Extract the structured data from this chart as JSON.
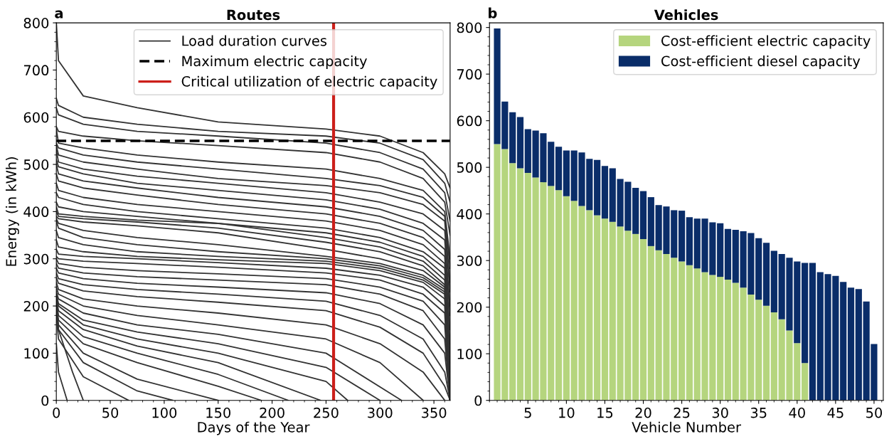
{
  "chart_data": [
    {
      "type": "line",
      "title": "Routes",
      "xlabel": "Days of the Year",
      "ylabel": "Energy (in kWh)",
      "annotations": [
        "a"
      ],
      "xlim": [
        0,
        365
      ],
      "xticks": [
        0,
        50,
        100,
        150,
        200,
        250,
        300,
        350
      ],
      "ylim": [
        0,
        800
      ],
      "yticks": [
        0,
        100,
        200,
        300,
        400,
        500,
        600,
        700,
        800
      ],
      "grid": false,
      "legend": "top right",
      "marker": "none",
      "line_style": "solid",
      "x": [
        0,
        2,
        25,
        75,
        150,
        250,
        300,
        340,
        360,
        365
      ],
      "series": [
        {
          "name": "Load duration curves",
          "color": "#333333",
          "values": [
            800,
            720,
            645,
            620,
            590,
            575,
            560,
            525,
            480,
            450
          ]
        },
        {
          "color": "#333333",
          "values": [
            640,
            625,
            600,
            585,
            570,
            560,
            545,
            510,
            460,
            420
          ]
        },
        {
          "color": "#333333",
          "values": [
            620,
            605,
            585,
            570,
            560,
            545,
            525,
            490,
            440,
            380
          ]
        },
        {
          "color": "#333333",
          "values": [
            580,
            570,
            560,
            550,
            540,
            525,
            505,
            470,
            420,
            350
          ]
        },
        {
          "color": "#333333",
          "values": [
            575,
            545,
            535,
            520,
            505,
            490,
            470,
            445,
            400,
            300
          ]
        },
        {
          "color": "#333333",
          "values": [
            545,
            535,
            520,
            505,
            490,
            470,
            455,
            430,
            390,
            280
          ]
        },
        {
          "color": "#333333",
          "values": [
            540,
            520,
            505,
            490,
            470,
            455,
            440,
            415,
            380,
            250
          ]
        },
        {
          "color": "#333333",
          "values": [
            530,
            505,
            490,
            475,
            460,
            440,
            420,
            395,
            360,
            230
          ]
        },
        {
          "color": "#333333",
          "values": [
            510,
            495,
            480,
            460,
            445,
            425,
            405,
            375,
            340,
            200
          ]
        },
        {
          "color": "#333333",
          "values": [
            500,
            480,
            465,
            450,
            430,
            410,
            390,
            360,
            320,
            180
          ]
        },
        {
          "color": "#333333",
          "values": [
            480,
            465,
            450,
            435,
            415,
            395,
            375,
            345,
            305,
            150
          ]
        },
        {
          "color": "#333333",
          "values": [
            460,
            445,
            430,
            415,
            400,
            380,
            360,
            330,
            290,
            120
          ]
        },
        {
          "color": "#333333",
          "values": [
            440,
            430,
            415,
            400,
            385,
            365,
            345,
            315,
            280,
            100
          ]
        },
        {
          "color": "#333333",
          "values": [
            420,
            410,
            400,
            390,
            375,
            355,
            335,
            305,
            265,
            80
          ]
        },
        {
          "color": "#333333",
          "values": [
            410,
            395,
            390,
            382,
            375,
            345,
            325,
            295,
            255,
            60
          ]
        },
        {
          "color": "#333333",
          "values": [
            400,
            390,
            385,
            378,
            365,
            335,
            315,
            285,
            245,
            40
          ]
        },
        {
          "color": "#333333",
          "values": [
            390,
            385,
            378,
            370,
            355,
            320,
            300,
            275,
            240,
            20
          ]
        },
        {
          "color": "#333333",
          "values": [
            385,
            375,
            360,
            345,
            330,
            305,
            290,
            265,
            235,
            0
          ]
        },
        {
          "color": "#333333",
          "values": [
            380,
            365,
            345,
            330,
            315,
            300,
            285,
            260,
            230,
            0
          ]
        },
        {
          "color": "#333333",
          "values": [
            360,
            345,
            330,
            315,
            305,
            295,
            280,
            255,
            225,
            0
          ]
        },
        {
          "color": "#333333",
          "values": [
            340,
            325,
            315,
            305,
            298,
            290,
            275,
            250,
            215,
            0
          ]
        },
        {
          "color": "#333333",
          "values": [
            320,
            310,
            305,
            300,
            292,
            280,
            265,
            240,
            200,
            0
          ]
        },
        {
          "color": "#333333",
          "values": [
            305,
            300,
            295,
            290,
            282,
            270,
            255,
            225,
            185,
            0
          ]
        },
        {
          "color": "#333333",
          "values": [
            300,
            290,
            282,
            275,
            268,
            258,
            240,
            210,
            160,
            0
          ]
        },
        {
          "color": "#333333",
          "values": [
            290,
            280,
            270,
            262,
            255,
            245,
            225,
            190,
            130,
            0
          ]
        },
        {
          "color": "#333333",
          "values": [
            280,
            270,
            258,
            248,
            240,
            228,
            205,
            160,
            100,
            0
          ]
        },
        {
          "color": "#333333",
          "values": [
            270,
            258,
            245,
            235,
            225,
            210,
            180,
            130,
            60,
            0
          ]
        },
        {
          "color": "#333333",
          "values": [
            260,
            248,
            232,
            220,
            208,
            190,
            155,
            100,
            30,
            0
          ]
        },
        {
          "color": "#333333",
          "x": [
            0,
            2,
            25,
            75,
            150,
            250,
            300,
            340,
            360
          ],
          "values": [
            250,
            235,
            215,
            200,
            185,
            160,
            120,
            60,
            0
          ]
        },
        {
          "color": "#333333",
          "x": [
            0,
            2,
            25,
            75,
            150,
            250,
            300,
            340
          ],
          "values": [
            240,
            225,
            200,
            180,
            160,
            130,
            80,
            0
          ]
        },
        {
          "color": "#333333",
          "x": [
            0,
            2,
            25,
            75,
            150,
            250,
            320
          ],
          "values": [
            230,
            215,
            185,
            160,
            140,
            100,
            0
          ]
        },
        {
          "color": "#333333",
          "x": [
            0,
            2,
            25,
            75,
            150,
            250,
            300
          ],
          "values": [
            225,
            205,
            170,
            145,
            120,
            70,
            0
          ]
        },
        {
          "color": "#333333",
          "x": [
            0,
            2,
            25,
            75,
            150,
            250,
            270
          ],
          "values": [
            220,
            200,
            160,
            130,
            100,
            40,
            0
          ]
        },
        {
          "color": "#333333",
          "x": [
            0,
            2,
            25,
            75,
            150,
            245
          ],
          "values": [
            215,
            190,
            150,
            115,
            80,
            0
          ]
        },
        {
          "color": "#333333",
          "x": [
            0,
            2,
            25,
            75,
            150,
            215
          ],
          "values": [
            210,
            180,
            135,
            100,
            55,
            0
          ]
        },
        {
          "color": "#333333",
          "x": [
            0,
            2,
            25,
            75,
            150,
            190
          ],
          "values": [
            205,
            170,
            120,
            80,
            30,
            0
          ]
        },
        {
          "color": "#333333",
          "x": [
            0,
            2,
            25,
            75,
            150
          ],
          "values": [
            200,
            160,
            100,
            45,
            0
          ]
        },
        {
          "color": "#333333",
          "x": [
            0,
            2,
            25,
            75,
            108
          ],
          "values": [
            190,
            150,
            80,
            20,
            0
          ]
        },
        {
          "color": "#333333",
          "x": [
            0,
            2,
            25,
            67
          ],
          "values": [
            180,
            130,
            50,
            0
          ]
        },
        {
          "color": "#333333",
          "x": [
            0,
            2,
            15,
            25
          ],
          "values": [
            220,
            150,
            60,
            0
          ]
        },
        {
          "color": "#333333",
          "x": [
            0,
            2,
            10
          ],
          "values": [
            120,
            60,
            0
          ]
        }
      ],
      "ref_lines": [
        {
          "axis": "y",
          "value": 550,
          "label": "Maximum electric capacity",
          "color": "#000000",
          "line_style": "dashed"
        },
        {
          "axis": "x",
          "value": 257,
          "label": "Critical utilization of electric capacity",
          "color": "#cc1f1a",
          "line_style": "solid"
        }
      ]
    },
    {
      "type": "bar",
      "stacked": true,
      "title": "Vehicles",
      "xlabel": "Vehicle Number",
      "annotations": [
        "b"
      ],
      "x": [
        1,
        2,
        3,
        4,
        5,
        6,
        7,
        8,
        9,
        10,
        11,
        12,
        13,
        14,
        15,
        16,
        17,
        18,
        19,
        20,
        21,
        22,
        23,
        24,
        25,
        26,
        27,
        28,
        29,
        30,
        31,
        32,
        33,
        34,
        35,
        36,
        37,
        38,
        39,
        40,
        41,
        42,
        43,
        44,
        45,
        46,
        47,
        48,
        49,
        50
      ],
      "xlim": [
        0,
        51.2
      ],
      "xticks": [
        5,
        10,
        15,
        20,
        25,
        30,
        35,
        40,
        45,
        50
      ],
      "ylim": [
        0,
        810
      ],
      "yticks": [
        0,
        100,
        200,
        300,
        400,
        500,
        600,
        700,
        800
      ],
      "grid": false,
      "legend": "top right",
      "series": [
        {
          "name": "Cost-efficient electric capacity",
          "color": "#b5d57e",
          "values": [
            550,
            539,
            509,
            498,
            488,
            478,
            468,
            460,
            451,
            438,
            428,
            417,
            408,
            397,
            390,
            383,
            373,
            364,
            357,
            346,
            331,
            322,
            314,
            306,
            298,
            290,
            283,
            275,
            269,
            265,
            259,
            252,
            242,
            227,
            216,
            203,
            189,
            174,
            150,
            123,
            80,
            0,
            0,
            0,
            0,
            0,
            0,
            0,
            0,
            0
          ]
        },
        {
          "name": "Cost-efficient diesel capacity",
          "color": "#0a2d69",
          "values": [
            248,
            102,
            109,
            110,
            94,
            101,
            105,
            95,
            93,
            98,
            108,
            115,
            110,
            119,
            113,
            115,
            102,
            105,
            99,
            103,
            105,
            97,
            102,
            102,
            109,
            103,
            107,
            115,
            113,
            115,
            109,
            114,
            121,
            132,
            132,
            135,
            132,
            140,
            156,
            175,
            215,
            295,
            275,
            271,
            267,
            254,
            242,
            239,
            212,
            121
          ]
        }
      ]
    }
  ]
}
